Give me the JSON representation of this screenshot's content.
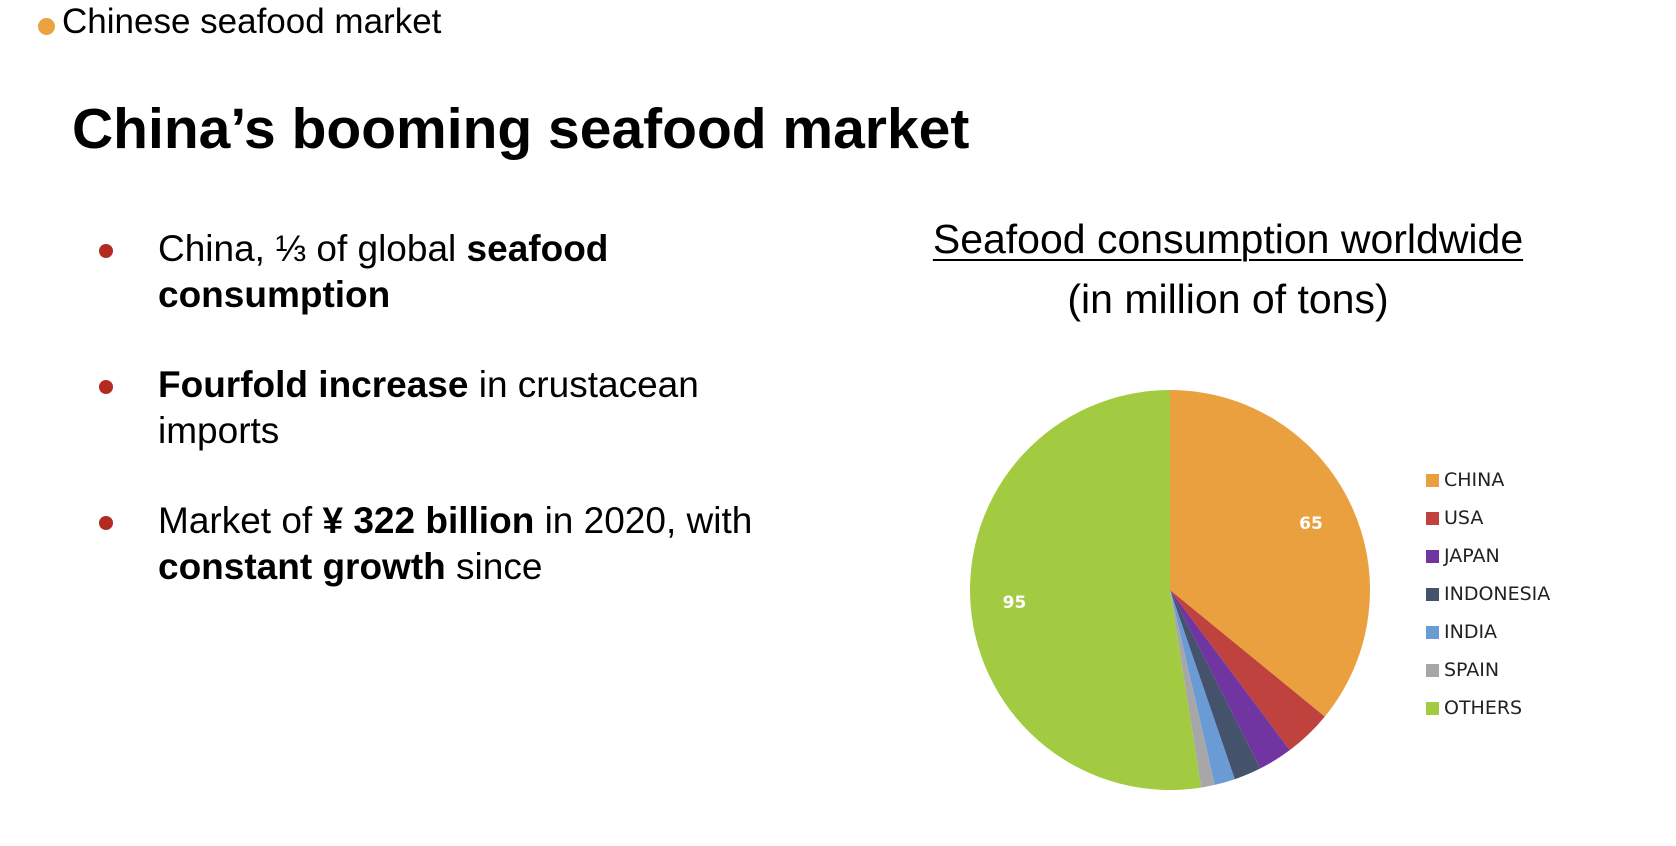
{
  "section": {
    "label": "Chinese seafood market",
    "dot_color": "#eba240"
  },
  "title": "China’s booming seafood market",
  "bullet_color": "#b22a20",
  "bullets": [
    {
      "segments": [
        {
          "text": "China, ⅓ of global ",
          "bold": false
        },
        {
          "text": "seafood consumption",
          "bold": true
        }
      ]
    },
    {
      "segments": [
        {
          "text": "Fourfold increase",
          "bold": true
        },
        {
          "text": " in crustacean imports",
          "bold": false
        }
      ]
    },
    {
      "segments": [
        {
          "text": "Market of ",
          "bold": false
        },
        {
          "text": "¥ 322 billion",
          "bold": true
        },
        {
          "text": " in 2020, with ",
          "bold": false
        },
        {
          "text": "constant growth",
          "bold": true
        },
        {
          "text": " since",
          "bold": false
        }
      ]
    }
  ],
  "chart_data": {
    "type": "pie",
    "title": "Seafood consumption worldwide",
    "subtitle": "(in million of tons)",
    "legend_position": "right",
    "categories": [
      "CHINA",
      "USA",
      "JAPAN",
      "INDONESIA",
      "INDIA",
      "SPAIN",
      "OTHERS"
    ],
    "values": [
      65,
      7,
      5,
      4,
      3,
      2,
      95
    ],
    "colors": [
      "#eba040",
      "#c0423e",
      "#7035a0",
      "#45526b",
      "#6a9bd4",
      "#a7a7a7",
      "#a3cb41"
    ],
    "data_labels": [
      "65",
      "",
      "",
      "",
      "",
      "",
      "95"
    ],
    "start_angle_deg": 0,
    "direction": "clockwise"
  }
}
